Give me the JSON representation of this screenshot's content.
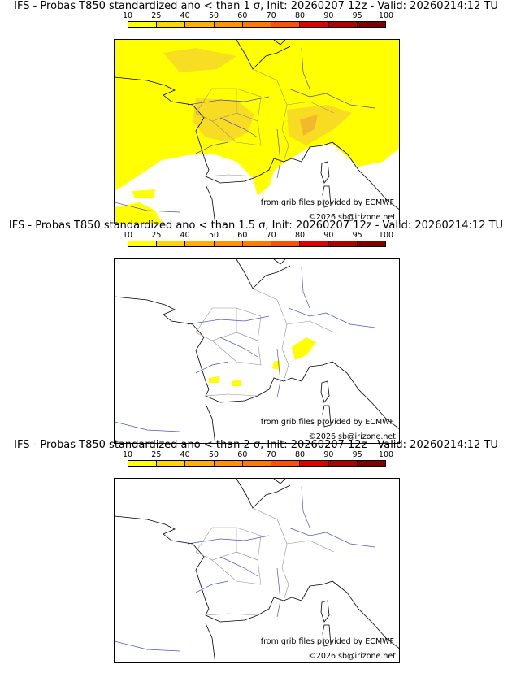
{
  "panels": [
    {
      "title": "IFS - Probas T850  standardized ano < than 1 σ, Init: 20260207 12z - Valid: 20260214:12 TU",
      "threshold_sigma": 1,
      "coverage": "wide"
    },
    {
      "title": "IFS - Probas T850  standardized ano < than 1.5 σ, Init: 20260207 12z - Valid: 20260214:12 TU",
      "threshold_sigma": 1.5,
      "coverage": "small"
    },
    {
      "title": "IFS - Probas T850  standardized ano < than 2 σ, Init: 20260207 12z - Valid: 20260214:12 TU",
      "threshold_sigma": 2,
      "coverage": "none"
    }
  ],
  "colorbar": {
    "labels": [
      "10",
      "25",
      "40",
      "50",
      "60",
      "70",
      "80",
      "90",
      "95",
      "100"
    ],
    "colors": [
      "#ffff00",
      "#ffd700",
      "#ffb000",
      "#ff9300",
      "#ff7a00",
      "#ff5000",
      "#e00000",
      "#b00000",
      "#800000"
    ]
  },
  "credits": {
    "source": "from grib files provided by ECMWF",
    "copyright": "©2026 sb@irizone.net"
  },
  "colors": {
    "coast": "#000000",
    "rivers": "#3333cc",
    "borders": "#888888",
    "proba_low": "#ffff00",
    "proba_mid": "#f5d030",
    "proba_high": "#f0b030"
  }
}
